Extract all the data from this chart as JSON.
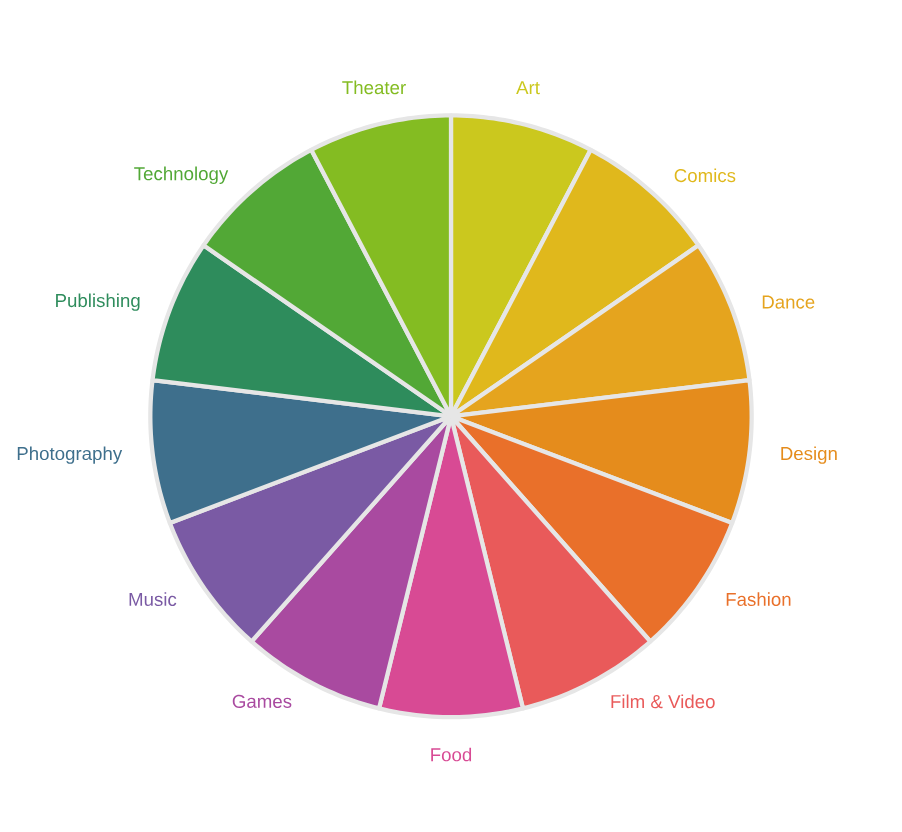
{
  "chart_data": {
    "type": "pie",
    "categories": [
      "Art",
      "Comics",
      "Dance",
      "Design",
      "Fashion",
      "Film & Video",
      "Food",
      "Games",
      "Music",
      "Photography",
      "Publishing",
      "Technology",
      "Theater"
    ],
    "values": [
      7.69,
      7.69,
      7.69,
      7.69,
      7.69,
      7.69,
      7.69,
      7.69,
      7.69,
      7.69,
      7.69,
      7.69,
      7.69
    ],
    "colors": [
      "#cbc81e",
      "#e0b81c",
      "#e5a41e",
      "#e58c1c",
      "#e9702a",
      "#e95a5a",
      "#d84a94",
      "#a94aa0",
      "#7a5aa4",
      "#3e6f8c",
      "#2e8c5c",
      "#52a836",
      "#84bc22"
    ]
  }
}
